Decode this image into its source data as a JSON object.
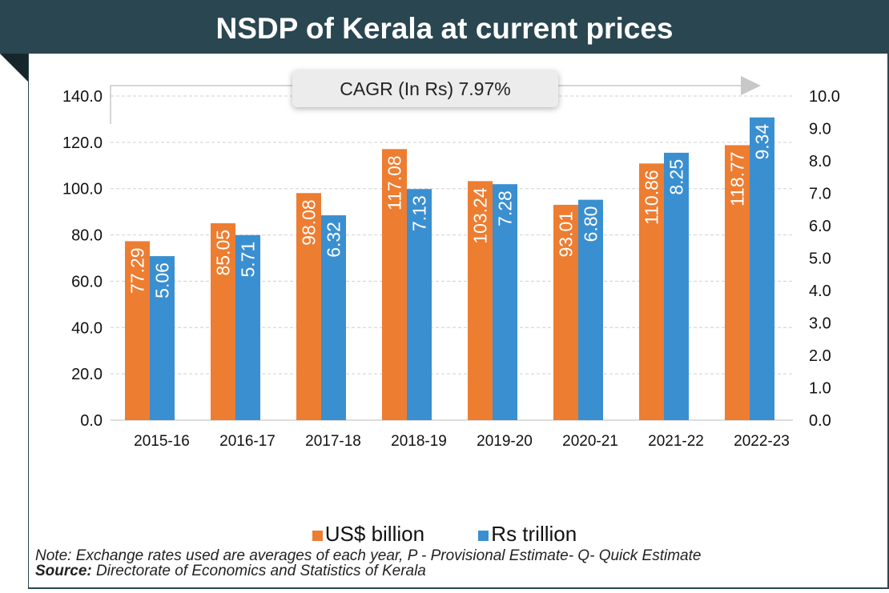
{
  "chart_data": {
    "type": "bar",
    "title": "NSDP of Kerala at current prices",
    "categories": [
      "2015-16",
      "2016-17",
      "2017-18",
      "2018-19",
      "2019-20",
      "2020-21",
      "2021-22",
      "2022-23"
    ],
    "series": [
      {
        "name": "US$ billion",
        "axis": "left",
        "color": "#ed7d31",
        "values": [
          77.29,
          85.05,
          98.08,
          117.08,
          103.24,
          93.01,
          110.86,
          118.77
        ],
        "labels": [
          "77.29",
          "85.05",
          "98.08",
          "117.08",
          "103.24",
          "93.01",
          "110.86",
          "118.77"
        ]
      },
      {
        "name": "Rs trillion",
        "axis": "right",
        "color": "#3a8fd0",
        "values": [
          5.06,
          5.71,
          6.32,
          7.13,
          7.28,
          6.8,
          8.25,
          9.34
        ],
        "labels": [
          "5.06",
          "5.71",
          "6.32",
          "7.13",
          "7.28",
          "6.80",
          "8.25",
          "9.34"
        ]
      }
    ],
    "ylim_left": [
      0,
      140
    ],
    "ylim_right": [
      0,
      10
    ],
    "yticks_left": [
      "0.0",
      "20.0",
      "40.0",
      "60.0",
      "80.0",
      "100.0",
      "120.0",
      "140.0"
    ],
    "yticks_right": [
      "0.0",
      "1.0",
      "2.0",
      "3.0",
      "4.0",
      "5.0",
      "6.0",
      "7.0",
      "8.0",
      "9.0",
      "10.0"
    ],
    "grid": true,
    "legend": "bottom",
    "annotation": "CAGR (In Rs) 7.97%"
  },
  "footer": {
    "note": "Note: Exchange rates used are averages of each year, P - Provisional Estimate- Q- Quick Estimate",
    "source_label": "Source:",
    "source_text": " Directorate of Economics and Statistics of Kerala"
  },
  "colors": {
    "header": "#2a4650"
  }
}
